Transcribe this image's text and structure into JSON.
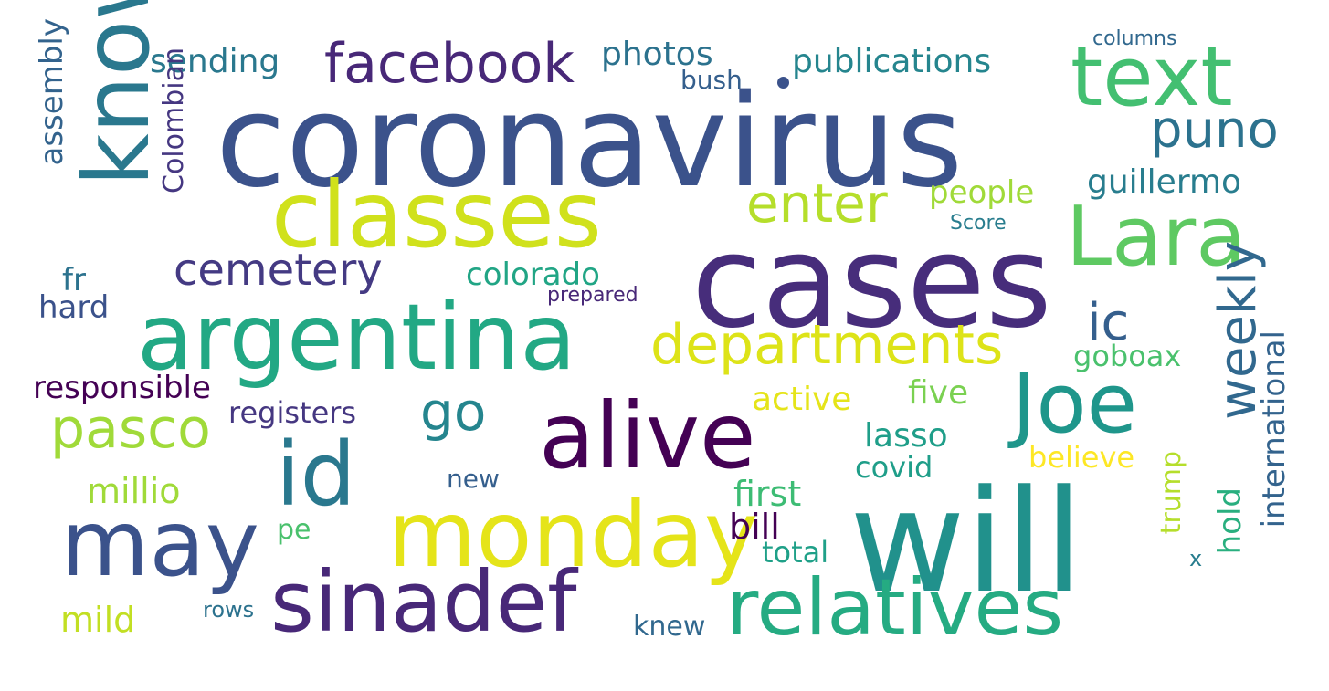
{
  "words": [
    {
      "id": "coronavirus",
      "text": "coronavirus",
      "color": "#3b528b"
    },
    {
      "id": "cases",
      "text": "cases",
      "color": "#472d7b"
    },
    {
      "id": "will",
      "text": "will",
      "color": "#21918c"
    },
    {
      "id": "classes",
      "text": "classes",
      "color": "#d0e11c"
    },
    {
      "id": "argentina",
      "text": "argentina",
      "color": "#22a884"
    },
    {
      "id": "alive",
      "text": "alive",
      "color": "#440154"
    },
    {
      "id": "text",
      "text": "text",
      "color": "#43bf71"
    },
    {
      "id": "lara",
      "text": "Lara",
      "color": "#5ec962"
    },
    {
      "id": "joe",
      "text": "Joe",
      "color": "#1f968b"
    },
    {
      "id": "know",
      "text": "know",
      "color": "#2a788e"
    },
    {
      "id": "monday",
      "text": "monday",
      "color": "#e5e419"
    },
    {
      "id": "may",
      "text": "may",
      "color": "#3b528b"
    },
    {
      "id": "sinadef",
      "text": "sinadef",
      "color": "#482878"
    },
    {
      "id": "relatives",
      "text": "relatives",
      "color": "#25ab82"
    },
    {
      "id": "id",
      "text": "id",
      "color": "#2a788e"
    },
    {
      "id": "facebook",
      "text": "facebook",
      "color": "#482878"
    },
    {
      "id": "departments",
      "text": "departments",
      "color": "#dde318"
    },
    {
      "id": "pasco",
      "text": "pasco",
      "color": "#a0da39"
    },
    {
      "id": "enter",
      "text": "enter",
      "color": "#b5de2b"
    },
    {
      "id": "cemetery",
      "text": "cemetery",
      "color": "#443a83"
    },
    {
      "id": "puno",
      "text": "puno",
      "color": "#2c728e"
    },
    {
      "id": "weekly",
      "text": "weekly",
      "color": "#31688e"
    },
    {
      "id": "go",
      "text": "go",
      "color": "#25858e"
    },
    {
      "id": "ic",
      "text": "ic",
      "color": "#355f8d"
    },
    {
      "id": "sending",
      "text": "sending",
      "color": "#2a788e"
    },
    {
      "id": "photos",
      "text": "photos",
      "color": "#2c728e"
    },
    {
      "id": "publications",
      "text": "publications",
      "color": "#25858e"
    },
    {
      "id": "colorado",
      "text": "colorado",
      "color": "#21a585"
    },
    {
      "id": "guillermo",
      "text": "guillermo",
      "color": "#287d8e"
    },
    {
      "id": "people",
      "text": "people",
      "color": "#a0da39"
    },
    {
      "id": "international",
      "text": "international",
      "color": "#33638d"
    },
    {
      "id": "assembly",
      "text": "assembly",
      "color": "#33638d"
    },
    {
      "id": "colombian",
      "text": "Colombian",
      "color": "#453781"
    },
    {
      "id": "bush",
      "text": "bush",
      "color": "#355f8d"
    },
    {
      "id": "columns",
      "text": "columns",
      "color": "#31688e"
    },
    {
      "id": "score",
      "text": "Score",
      "color": "#287d8e"
    },
    {
      "id": "fr",
      "text": "fr",
      "color": "#2c728e"
    },
    {
      "id": "hard",
      "text": "hard",
      "color": "#3b528b"
    },
    {
      "id": "prepared",
      "text": "prepared",
      "color": "#482878"
    },
    {
      "id": "responsible",
      "text": "responsible",
      "color": "#440154"
    },
    {
      "id": "registers",
      "text": "registers",
      "color": "#453781"
    },
    {
      "id": "active",
      "text": "active",
      "color": "#e5e419"
    },
    {
      "id": "five",
      "text": "five",
      "color": "#7ad151"
    },
    {
      "id": "goboax",
      "text": "goboax",
      "color": "#4ac16d"
    },
    {
      "id": "lasso",
      "text": "lasso",
      "color": "#1f9e89"
    },
    {
      "id": "believe",
      "text": "believe",
      "color": "#fde725"
    },
    {
      "id": "covid",
      "text": "covid",
      "color": "#1f9e89"
    },
    {
      "id": "first",
      "text": "first",
      "color": "#3dbc74"
    },
    {
      "id": "millio",
      "text": "millio",
      "color": "#a0da39"
    },
    {
      "id": "new",
      "text": "new",
      "color": "#355f8d"
    },
    {
      "id": "bill",
      "text": "bill",
      "color": "#440154"
    },
    {
      "id": "pe",
      "text": "pe",
      "color": "#4ac16d"
    },
    {
      "id": "total",
      "text": "total",
      "color": "#1fa088"
    },
    {
      "id": "trump",
      "text": "trump",
      "color": "#b5de2b"
    },
    {
      "id": "hold",
      "text": "hold",
      "color": "#29af7f"
    },
    {
      "id": "x",
      "text": "x",
      "color": "#287d8e"
    },
    {
      "id": "mild",
      "text": "mild",
      "color": "#c2df23"
    },
    {
      "id": "rows",
      "text": "rows",
      "color": "#2c728e"
    },
    {
      "id": "knew",
      "text": "knew",
      "color": "#31688e"
    }
  ]
}
